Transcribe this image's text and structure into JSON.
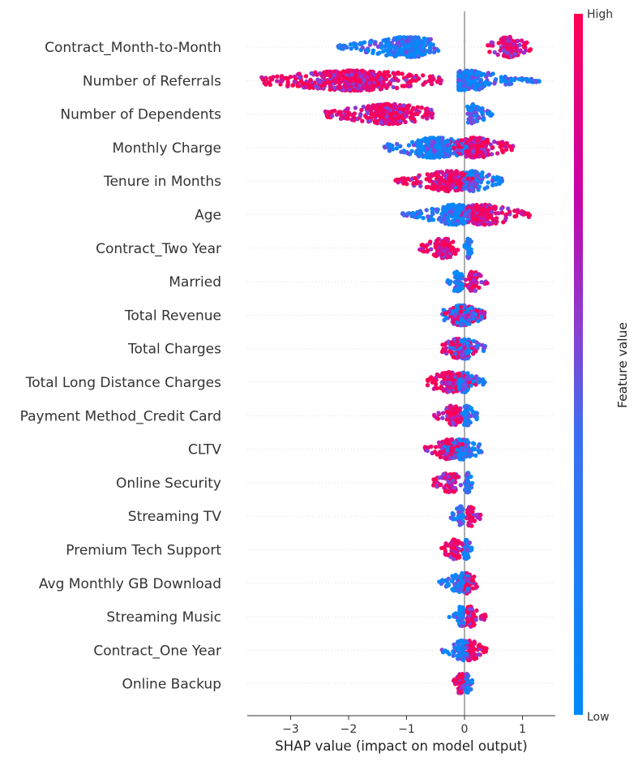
{
  "chart_data": {
    "type": "scatter",
    "subtype": "shap-beeswarm-summary",
    "title": "",
    "xlabel": "SHAP value (impact on model output)",
    "ylabel": "",
    "xlim": [
      -3.65,
      1.55
    ],
    "xticks": [
      -3,
      -2,
      -1,
      0,
      1
    ],
    "colorbar": {
      "label": "Feature value",
      "high_label": "High",
      "low_label": "Low",
      "low_color": "#008bfb",
      "high_color": "#ff0051"
    },
    "reference_line_x": 0,
    "features": [
      {
        "name": "Contract_Month-to-Month",
        "low_range": [
          -2.2,
          -0.45
        ],
        "high_range": [
          0.4,
          1.15
        ],
        "low_center": -1.0,
        "high_center": 0.75
      },
      {
        "name": "Number of Referrals",
        "low_range": [
          -0.1,
          1.3
        ],
        "high_range": [
          -3.5,
          -0.4
        ],
        "low_center": 0.05,
        "high_center": -1.9
      },
      {
        "name": "Number of Dependents",
        "low_range": [
          0.05,
          0.5
        ],
        "high_range": [
          -2.4,
          -0.55
        ],
        "low_center": 0.15,
        "high_center": -1.3
      },
      {
        "name": "Monthly Charge",
        "low_range": [
          -1.4,
          0.1
        ],
        "high_range": [
          -0.3,
          0.85
        ],
        "low_center": -0.5,
        "high_center": 0.2
      },
      {
        "name": "Tenure in Months",
        "low_range": [
          -0.2,
          0.65
        ],
        "high_range": [
          -1.2,
          0.2
        ],
        "low_center": 0.15,
        "high_center": -0.25
      },
      {
        "name": "Age",
        "low_range": [
          -1.1,
          0.1
        ],
        "high_range": [
          -0.2,
          1.15
        ],
        "low_center": -0.15,
        "high_center": 0.3
      },
      {
        "name": "Contract_Two Year",
        "low_range": [
          0.0,
          0.12
        ],
        "high_range": [
          -0.8,
          -0.1
        ],
        "low_center": 0.07,
        "high_center": -0.35
      },
      {
        "name": "Married",
        "low_range": [
          -0.3,
          0.0
        ],
        "high_range": [
          0.0,
          0.42
        ],
        "low_center": -0.12,
        "high_center": 0.15
      },
      {
        "name": "Total Revenue",
        "low_range": [
          -0.4,
          0.35
        ],
        "high_range": [
          -0.35,
          0.35
        ],
        "low_center": -0.05,
        "high_center": -0.05
      },
      {
        "name": "Total Charges",
        "low_range": [
          -0.25,
          0.4
        ],
        "high_range": [
          -0.4,
          0.2
        ],
        "low_center": 0.0,
        "high_center": -0.1
      },
      {
        "name": "Total Long Distance Charges",
        "low_range": [
          -0.2,
          0.35
        ],
        "high_range": [
          -0.65,
          0.2
        ],
        "low_center": 0.0,
        "high_center": -0.25
      },
      {
        "name": "Payment Method_Credit Card",
        "low_range": [
          -0.05,
          0.25
        ],
        "high_range": [
          -0.55,
          -0.02
        ],
        "low_center": 0.05,
        "high_center": -0.2
      },
      {
        "name": "CLTV",
        "low_range": [
          -0.4,
          0.3
        ],
        "high_range": [
          -0.7,
          0.0
        ],
        "low_center": -0.05,
        "high_center": -0.25
      },
      {
        "name": "Online Security",
        "low_range": [
          0.0,
          0.15
        ],
        "high_range": [
          -0.55,
          -0.03
        ],
        "low_center": 0.05,
        "high_center": -0.25
      },
      {
        "name": "Streaming TV",
        "low_range": [
          -0.25,
          0.0
        ],
        "high_range": [
          0.0,
          0.28
        ],
        "low_center": -0.07,
        "high_center": 0.1
      },
      {
        "name": "Premium Tech Support",
        "low_range": [
          -0.02,
          0.13
        ],
        "high_range": [
          -0.4,
          -0.02
        ],
        "low_center": 0.04,
        "high_center": -0.18
      },
      {
        "name": "Avg Monthly GB Download",
        "low_range": [
          -0.45,
          0.15
        ],
        "high_range": [
          -0.1,
          0.25
        ],
        "low_center": -0.05,
        "high_center": 0.05
      },
      {
        "name": "Streaming Music",
        "low_range": [
          -0.28,
          0.0
        ],
        "high_range": [
          0.0,
          0.38
        ],
        "low_center": -0.06,
        "high_center": 0.1
      },
      {
        "name": "Contract_One Year",
        "low_range": [
          -0.4,
          0.05
        ],
        "high_range": [
          0.0,
          0.38
        ],
        "low_center": -0.03,
        "high_center": 0.1
      },
      {
        "name": "Online Backup",
        "low_range": [
          0.0,
          0.15
        ],
        "high_range": [
          -0.22,
          0.0
        ],
        "low_center": 0.04,
        "high_center": -0.06
      }
    ]
  }
}
